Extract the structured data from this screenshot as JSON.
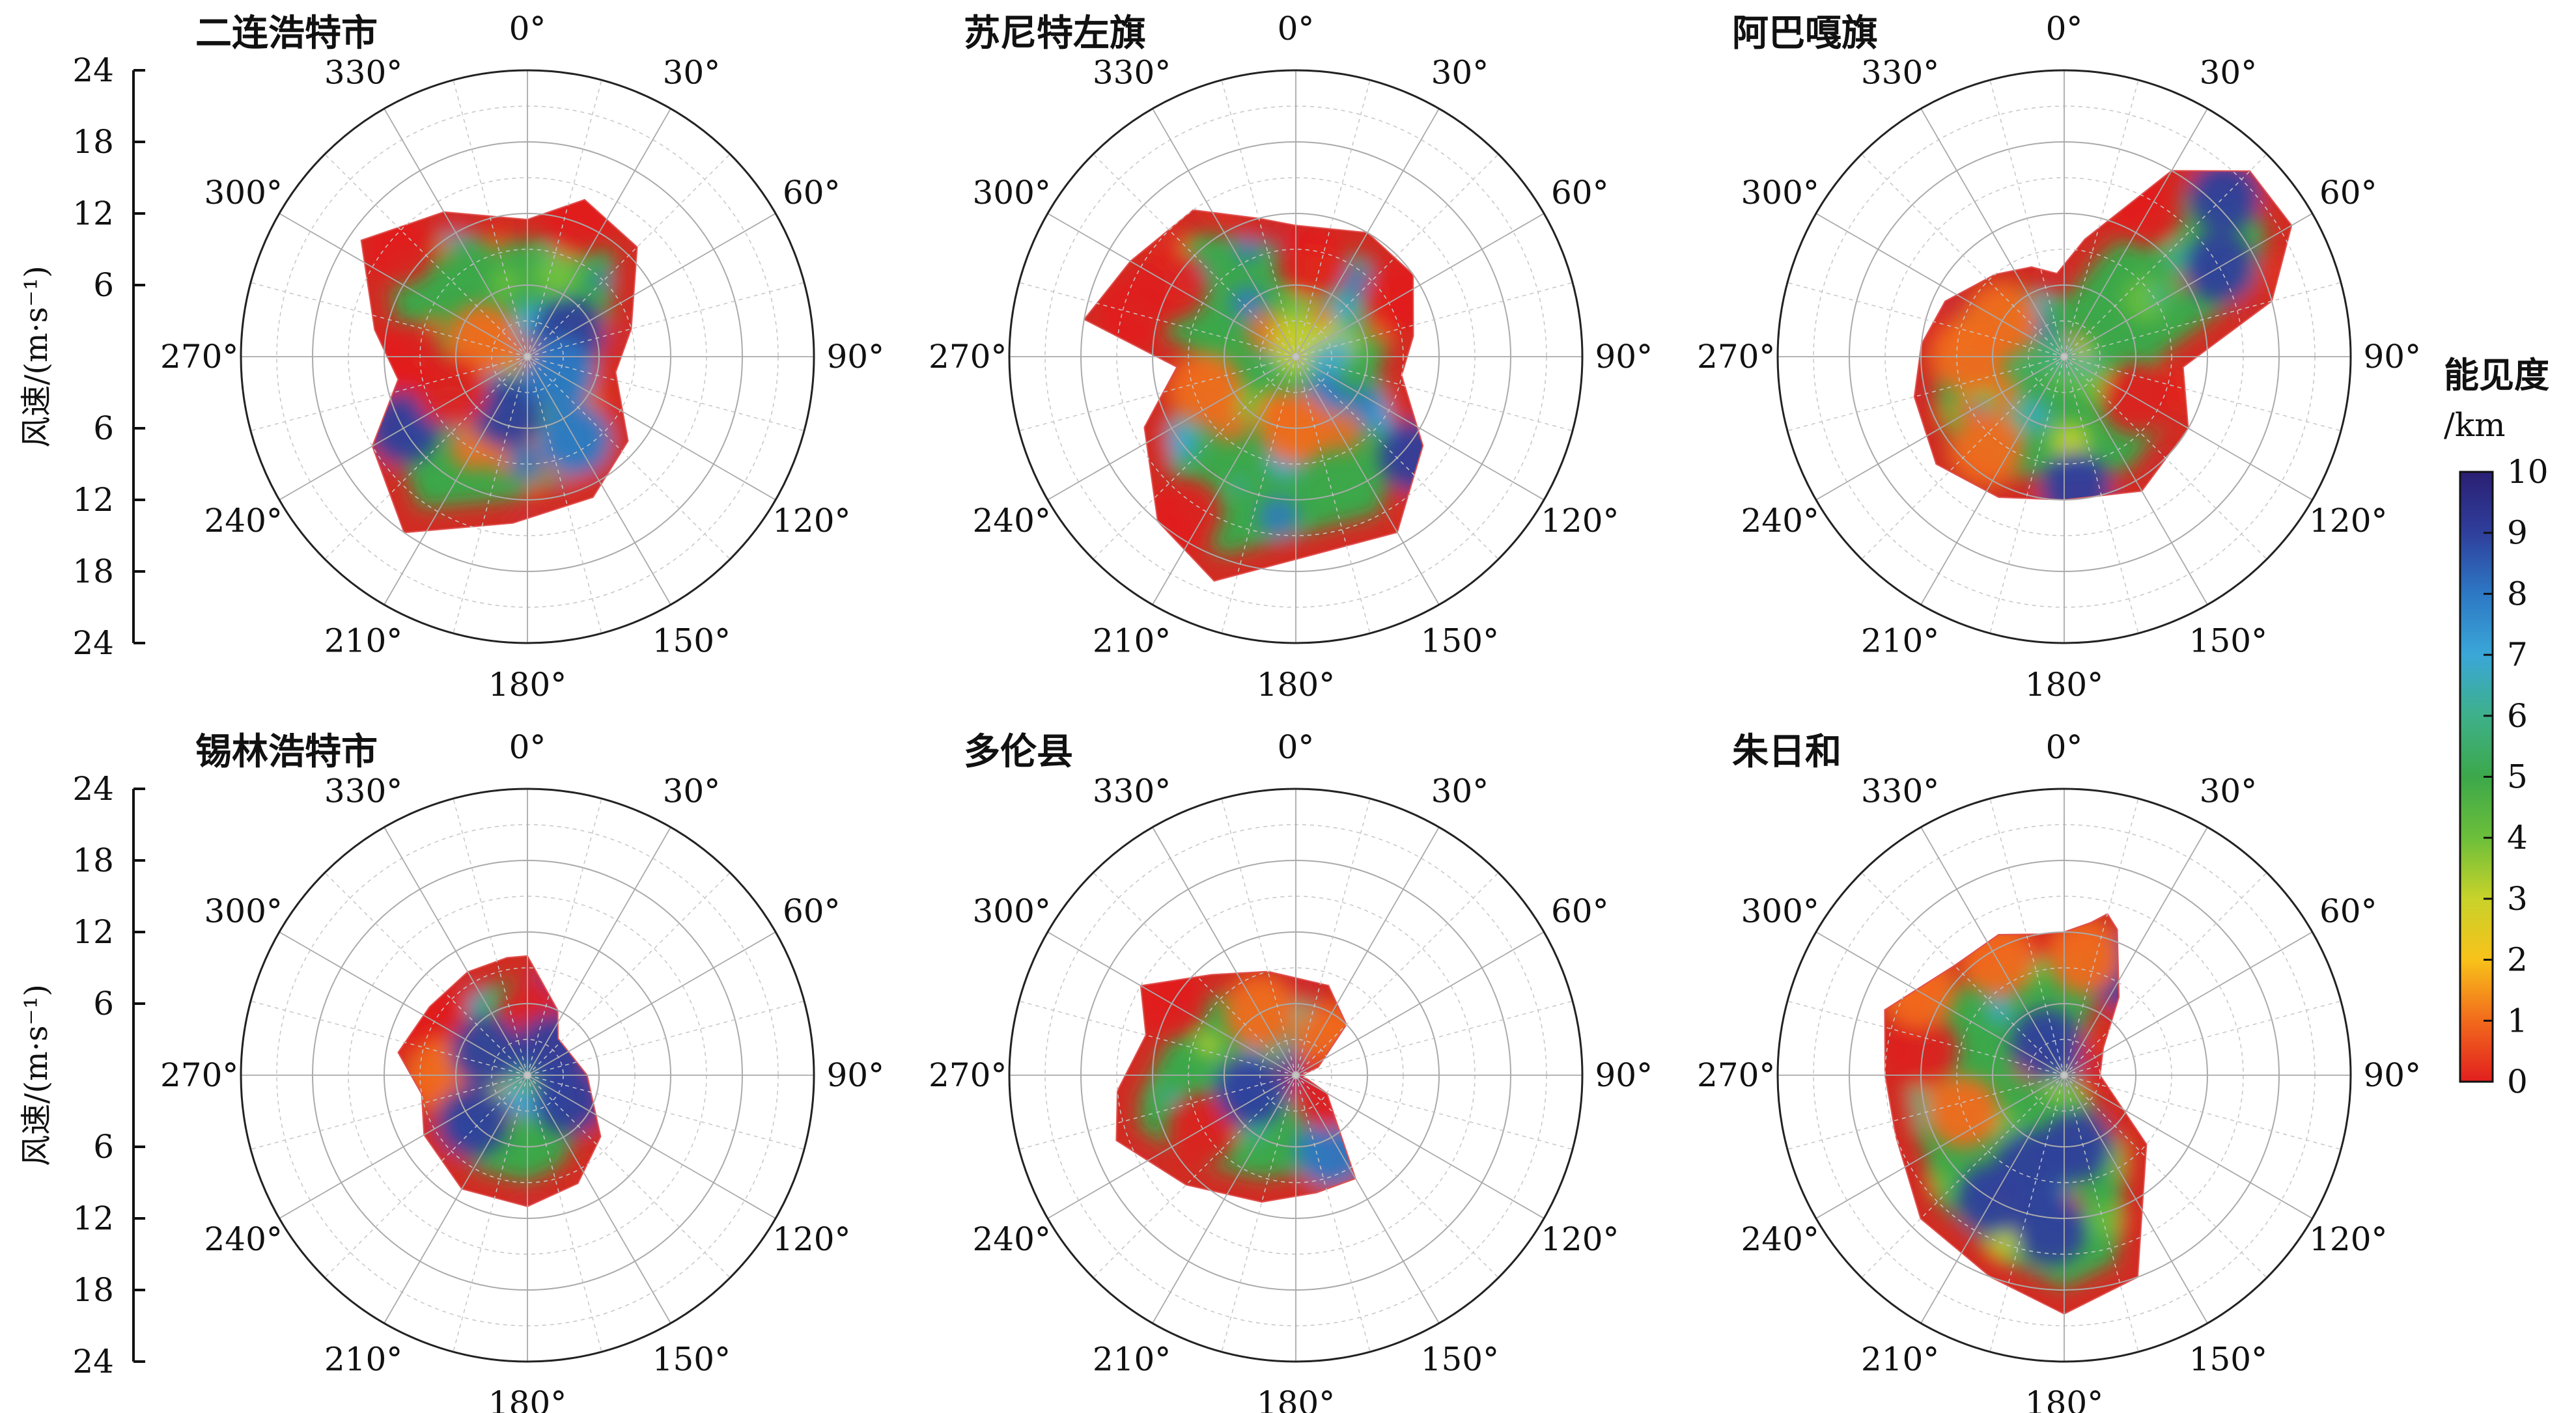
{
  "chart_data": {
    "type": "polar-contour",
    "angle_ticks": [
      "0°",
      "30°",
      "60°",
      "90°",
      "120°",
      "150°",
      "180°",
      "210°",
      "240°",
      "270°",
      "300°",
      "330°"
    ],
    "speed_axis": {
      "label": "风速/(m·s⁻¹)",
      "ticks_top": [
        "24",
        "18",
        "12",
        "6"
      ],
      "ticks_bottom": [
        "6",
        "12",
        "18",
        "24"
      ],
      "rmax": 24
    },
    "colorbar": {
      "title": "能见度",
      "unit": "/km",
      "ticks": [
        "0",
        "1",
        "2",
        "3",
        "4",
        "5",
        "6",
        "7",
        "8",
        "9",
        "10"
      ],
      "range": [
        0,
        10
      ],
      "colors": [
        "#e11f1f",
        "#f26a1c",
        "#f8c21a",
        "#c8d22a",
        "#6cbf3a",
        "#3ca84a",
        "#3eb08a",
        "#3aa7d8",
        "#2d78c4",
        "#2f3f9c",
        "#2a1f73"
      ]
    },
    "panels": [
      {
        "name": "二连浩特市",
        "hull": [
          [
            0,
            11.5
          ],
          [
            20,
            14
          ],
          [
            45,
            13
          ],
          [
            75,
            9
          ],
          [
            100,
            7.5
          ],
          [
            130,
            11
          ],
          [
            155,
            13
          ],
          [
            185,
            14
          ],
          [
            215,
            18
          ],
          [
            240,
            15
          ],
          [
            260,
            11
          ],
          [
            280,
            13
          ],
          [
            305,
            17
          ],
          [
            330,
            14
          ]
        ],
        "blobs": [
          [
            150,
            8,
            8
          ],
          [
            200,
            5,
            9
          ],
          [
            60,
            4,
            9
          ],
          [
            120,
            3,
            8
          ],
          [
            240,
            12,
            9
          ],
          [
            290,
            4,
            1
          ],
          [
            270,
            10,
            0
          ],
          [
            310,
            14,
            0
          ],
          [
            20,
            12,
            0
          ],
          [
            245,
            7,
            0
          ]
        ],
        "base": 5
      },
      {
        "name": "苏尼特左旗",
        "hull": [
          [
            0,
            11
          ],
          [
            30,
            12
          ],
          [
            55,
            12
          ],
          [
            80,
            10
          ],
          [
            100,
            9
          ],
          [
            125,
            13
          ],
          [
            150,
            17
          ],
          [
            200,
            20
          ],
          [
            220,
            18
          ],
          [
            245,
            14
          ],
          [
            265,
            10
          ],
          [
            280,
            18
          ],
          [
            300,
            16
          ],
          [
            325,
            15
          ],
          [
            345,
            12
          ]
        ],
        "blobs": [
          [
            285,
            14,
            0
          ],
          [
            300,
            12,
            0
          ],
          [
            60,
            10,
            0
          ],
          [
            130,
            13,
            9
          ],
          [
            250,
            8,
            1
          ],
          [
            180,
            6,
            1
          ],
          [
            10,
            8,
            0
          ],
          [
            215,
            16,
            0
          ]
        ],
        "base": 5
      },
      {
        "name": "阿巴嘎旗",
        "hull": [
          [
            355,
            7
          ],
          [
            10,
            10
          ],
          [
            30,
            18
          ],
          [
            45,
            22
          ],
          [
            60,
            22
          ],
          [
            75,
            18
          ],
          [
            95,
            10
          ],
          [
            120,
            12
          ],
          [
            150,
            13
          ],
          [
            180,
            12
          ],
          [
            205,
            13
          ],
          [
            230,
            14
          ],
          [
            255,
            13
          ],
          [
            275,
            12
          ],
          [
            295,
            11
          ],
          [
            320,
            9
          ],
          [
            340,
            8
          ]
        ],
        "blobs": [
          [
            60,
            15,
            9
          ],
          [
            45,
            19,
            9
          ],
          [
            120,
            7,
            0
          ],
          [
            30,
            14,
            0
          ],
          [
            175,
            11,
            9
          ],
          [
            270,
            8,
            1
          ],
          [
            300,
            6,
            1
          ],
          [
            220,
            10,
            1
          ]
        ],
        "base": 5
      },
      {
        "name": "锡林浩特市",
        "hull": [
          [
            0,
            10
          ],
          [
            25,
            6
          ],
          [
            40,
            4
          ],
          [
            90,
            5
          ],
          [
            130,
            8
          ],
          [
            155,
            10
          ],
          [
            180,
            11
          ],
          [
            210,
            11
          ],
          [
            240,
            10
          ],
          [
            260,
            9
          ],
          [
            280,
            11
          ],
          [
            305,
            10
          ],
          [
            330,
            10
          ],
          [
            350,
            10
          ]
        ],
        "blobs": [
          [
            20,
            6,
            9
          ],
          [
            5,
            5,
            0
          ],
          [
            45,
            3,
            9
          ],
          [
            120,
            4,
            9
          ],
          [
            300,
            9,
            0
          ],
          [
            270,
            7,
            1
          ],
          [
            230,
            6,
            9
          ],
          [
            300,
            4,
            9
          ]
        ],
        "base": 5
      },
      {
        "name": "多伦县",
        "hull": [
          [
            345,
            9
          ],
          [
            20,
            8
          ],
          [
            45,
            6
          ],
          [
            70,
            2
          ],
          [
            90,
            0.5
          ],
          [
            120,
            3
          ],
          [
            150,
            10
          ],
          [
            170,
            10
          ],
          [
            195,
            11
          ],
          [
            225,
            13
          ],
          [
            250,
            16
          ],
          [
            265,
            15
          ],
          [
            285,
            13
          ],
          [
            300,
            15
          ],
          [
            320,
            11
          ]
        ],
        "blobs": [
          [
            155,
            7,
            8
          ],
          [
            240,
            9,
            0
          ],
          [
            80,
            2,
            9
          ],
          [
            300,
            12,
            0
          ],
          [
            330,
            6,
            1
          ],
          [
            250,
            4,
            9
          ],
          [
            45,
            4,
            1
          ],
          [
            120,
            3,
            0
          ]
        ],
        "base": 5
      },
      {
        "name": "朱日和",
        "hull": [
          [
            0,
            12
          ],
          [
            10,
            13
          ],
          [
            15,
            14
          ],
          [
            20,
            13
          ],
          [
            35,
            8
          ],
          [
            55,
            4
          ],
          [
            90,
            3
          ],
          [
            130,
            9
          ],
          [
            160,
            18
          ],
          [
            180,
            20
          ],
          [
            200,
            18
          ],
          [
            225,
            17
          ],
          [
            250,
            15
          ],
          [
            270,
            15
          ],
          [
            290,
            16
          ],
          [
            315,
            13
          ],
          [
            335,
            13
          ],
          [
            350,
            12
          ]
        ],
        "blobs": [
          [
            30,
            10,
            9
          ],
          [
            170,
            6,
            9
          ],
          [
            280,
            12,
            0
          ],
          [
            300,
            14,
            1
          ],
          [
            330,
            11,
            1
          ],
          [
            185,
            13,
            9
          ],
          [
            210,
            12,
            9
          ],
          [
            330,
            3,
            9
          ],
          [
            200,
            8,
            9
          ],
          [
            250,
            9,
            1
          ],
          [
            10,
            10,
            1
          ]
        ],
        "base": 5
      }
    ]
  }
}
